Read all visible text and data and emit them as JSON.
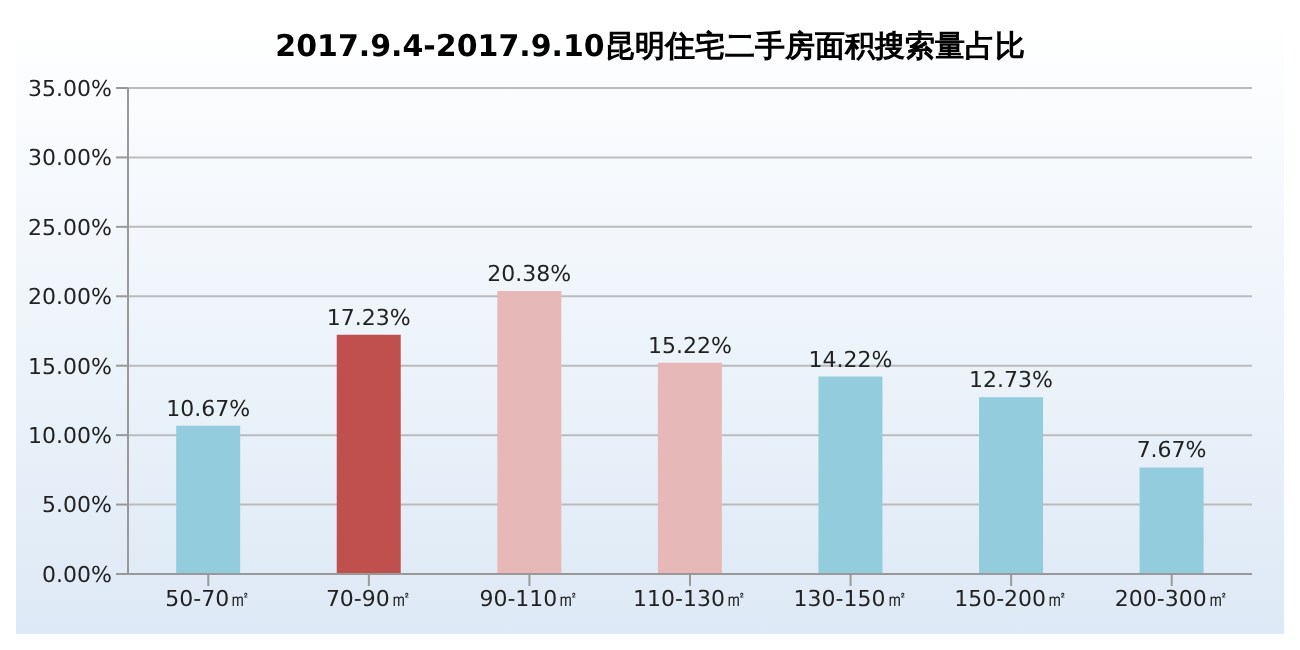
{
  "chart_data": {
    "type": "bar",
    "title": "2017.9.4-2017.9.10昆明住宅二手房面积搜索量占比",
    "categories": [
      "50-70㎡",
      "70-90㎡",
      "90-110㎡",
      "110-130㎡",
      "130-150㎡",
      "150-200㎡",
      "200-300㎡"
    ],
    "values": [
      10.67,
      17.23,
      20.38,
      15.22,
      14.22,
      12.73,
      7.67
    ],
    "colors": [
      "#93cddd",
      "#c0504d",
      "#e6b9b8",
      "#e6b9b8",
      "#93cddd",
      "#93cddd",
      "#93cddd"
    ],
    "value_labels": [
      "10.67%",
      "17.23%",
      "20.38%",
      "15.22%",
      "14.22%",
      "12.73%",
      "7.67%"
    ],
    "ylim": [
      0,
      35
    ],
    "yticks": [
      {
        "value": 0,
        "label": "0.00%"
      },
      {
        "value": 5,
        "label": "5.00%"
      },
      {
        "value": 10,
        "label": "10.00%"
      },
      {
        "value": 15,
        "label": "15.00%"
      },
      {
        "value": 20,
        "label": "20.00%"
      },
      {
        "value": 25,
        "label": "25.00%"
      },
      {
        "value": 30,
        "label": "30.00%"
      },
      {
        "value": 35,
        "label": "35.00%"
      }
    ],
    "grid": "y"
  }
}
